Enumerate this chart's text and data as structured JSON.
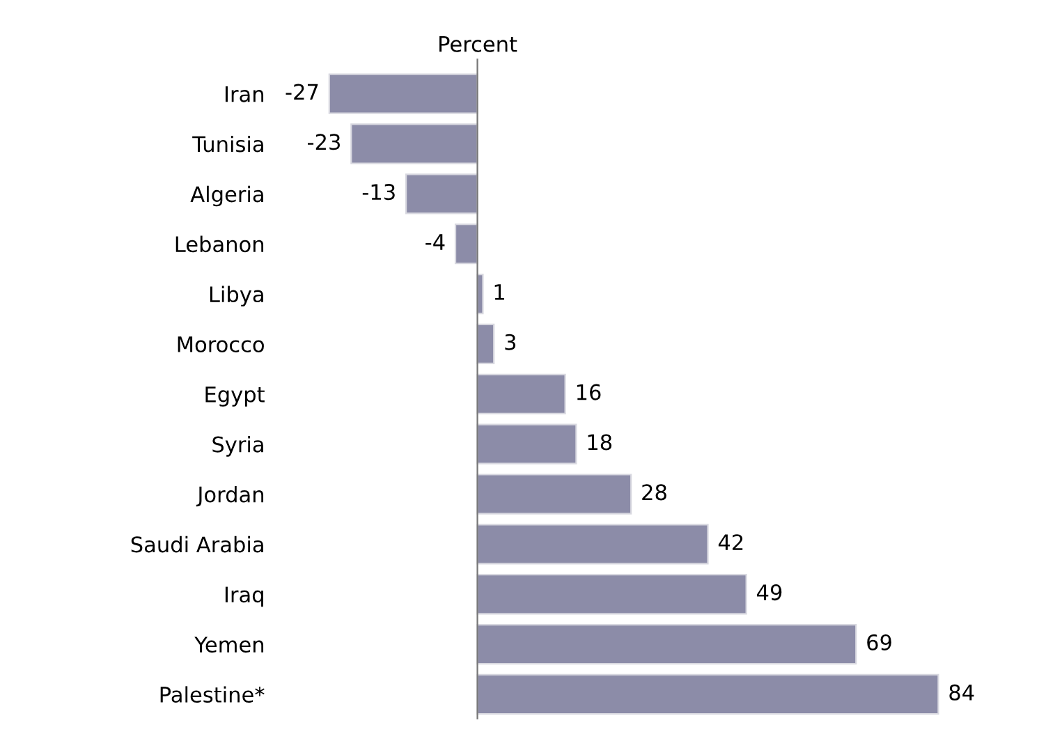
{
  "chart_data": {
    "type": "bar",
    "orientation": "horizontal",
    "title": "Percent",
    "categories": [
      "Iran",
      "Tunisia",
      "Algeria",
      "Lebanon",
      "Libya",
      "Morocco",
      "Egypt",
      "Syria",
      "Jordan",
      "Saudi Arabia",
      "Iraq",
      "Yemen",
      "Palestine*"
    ],
    "values": [
      -27,
      -23,
      -13,
      -4,
      1,
      3,
      16,
      18,
      28,
      42,
      49,
      69,
      84
    ],
    "color": "#8c8ca8",
    "data_labels": true,
    "grid": false,
    "legend": false
  }
}
